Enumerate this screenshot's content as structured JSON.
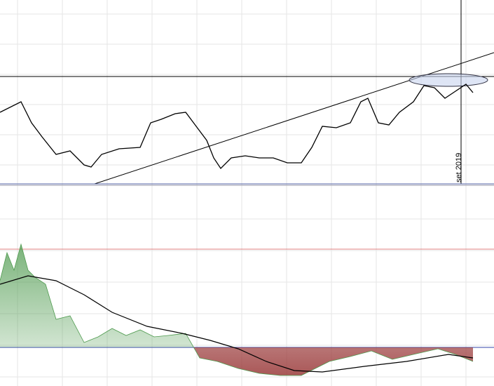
{
  "chart_data": [
    {
      "type": "line",
      "annotation": "set 2019",
      "color": "#000000",
      "x": [
        0,
        30,
        45,
        60,
        80,
        100,
        120,
        130,
        145,
        170,
        200,
        215,
        230,
        250,
        265,
        280,
        295,
        305,
        315,
        330,
        350,
        370,
        390,
        410,
        430,
        445,
        460,
        480,
        500,
        515,
        525,
        540,
        555,
        570,
        590,
        605,
        620,
        635,
        650,
        665,
        675
      ],
      "values": [
        102,
        117,
        87,
        67,
        42,
        47,
        27,
        24,
        42,
        50,
        52,
        87,
        92,
        100,
        102,
        82,
        62,
        37,
        22,
        37,
        40,
        37,
        37,
        30,
        30,
        52,
        82,
        80,
        87,
        117,
        122,
        87,
        84,
        102,
        117,
        140,
        137,
        122,
        132,
        142,
        130
      ],
      "xlim": [
        0,
        705
      ],
      "ylim": [
        0,
        262
      ]
    },
    {
      "type": "area",
      "x": [
        0,
        10,
        20,
        30,
        40,
        50,
        65,
        80,
        100,
        120,
        140,
        160,
        180,
        200,
        220,
        240,
        265,
        285,
        310,
        340,
        370,
        400,
        430,
        450,
        470,
        500,
        530,
        560,
        590,
        625,
        650,
        675
      ],
      "values": [
        95,
        135,
        110,
        147,
        110,
        100,
        90,
        40,
        45,
        7,
        15,
        27,
        17,
        25,
        15,
        17,
        20,
        -15,
        -20,
        -30,
        -37,
        -40,
        -40,
        -30,
        -20,
        -13,
        -5,
        -17,
        -10,
        -2,
        -10,
        -20
      ],
      "signal": {
        "color": "#000000",
        "x": [
          0,
          40,
          80,
          120,
          160,
          210,
          260,
          300,
          340,
          380,
          420,
          460,
          520,
          580,
          640,
          675
        ],
        "values": [
          90,
          102,
          95,
          75,
          50,
          30,
          20,
          10,
          -2,
          -20,
          -33,
          -35,
          -27,
          -20,
          -10,
          -15
        ]
      },
      "positive_color": "#4e9a4e",
      "negative_color": "#9a3a3a",
      "xlim": [
        0,
        705
      ],
      "ylim": [
        -55,
        160
      ]
    }
  ]
}
